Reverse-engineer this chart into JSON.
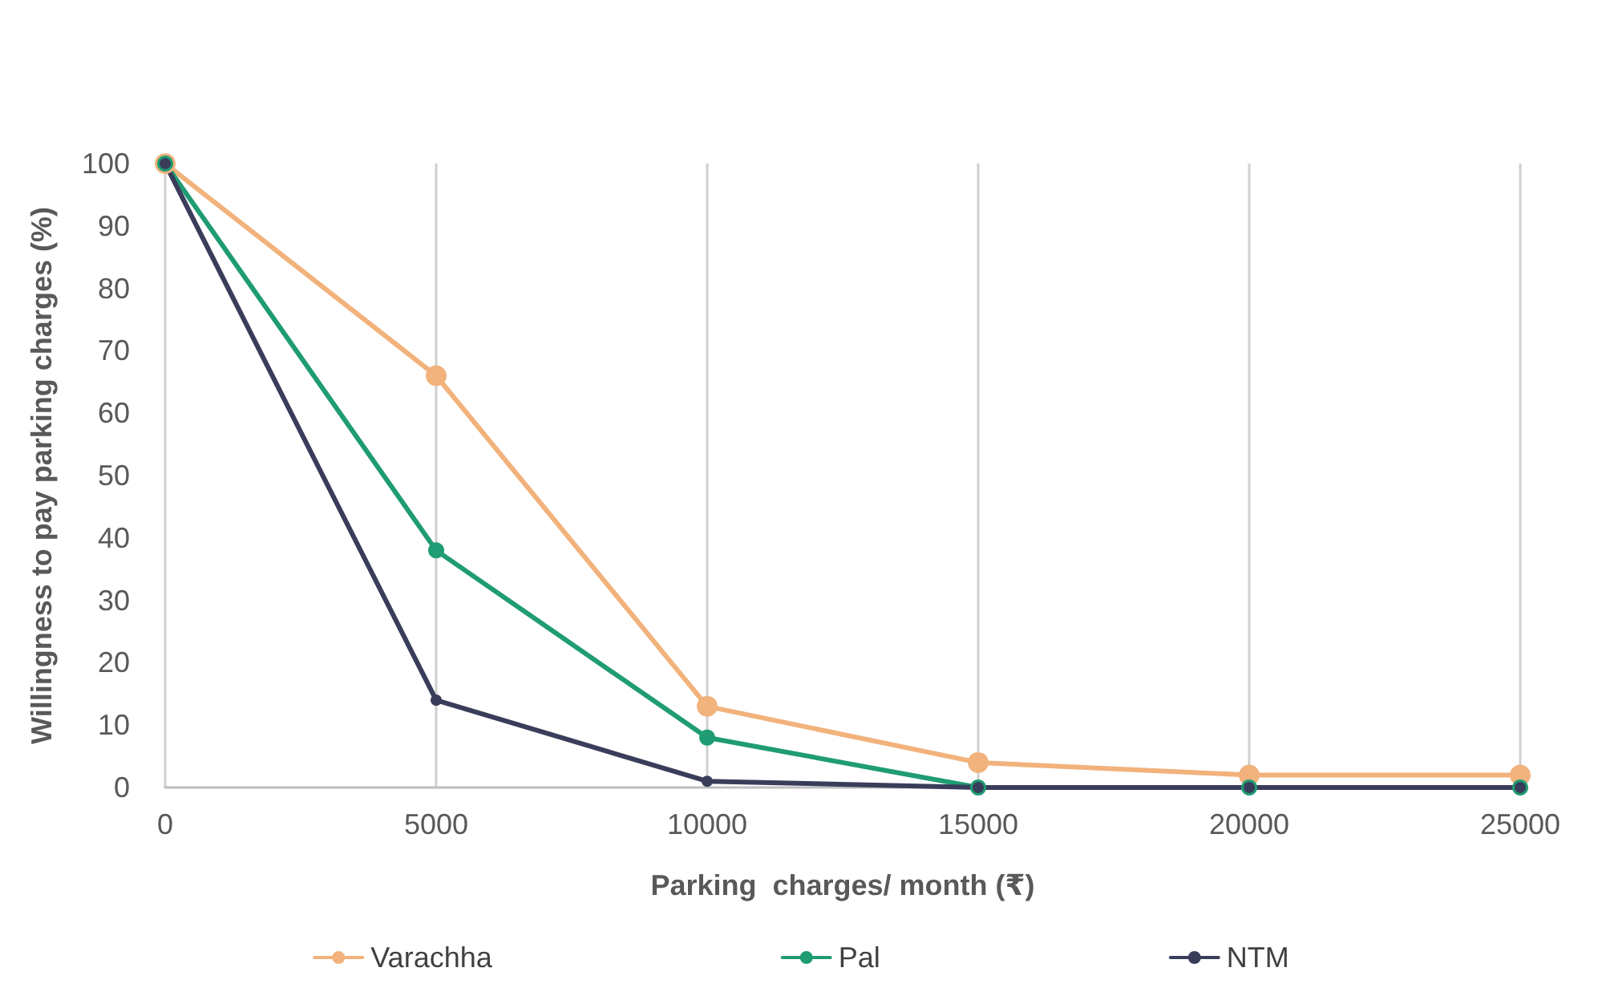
{
  "chart_data": {
    "type": "line",
    "xlabel": "Parking  charges/ month (₹)",
    "ylabel": "Willingness to pay parking charges (%)",
    "x": [
      0,
      5000,
      10000,
      15000,
      20000,
      25000
    ],
    "series": [
      {
        "name": "Varachha",
        "color": "#f2b27c",
        "values": [
          100,
          66,
          13,
          4,
          2,
          2
        ]
      },
      {
        "name": "Pal",
        "color": "#1f9c74",
        "values": [
          100,
          38,
          8,
          0,
          0,
          0
        ]
      },
      {
        "name": "NTM",
        "color": "#3a3d5a",
        "values": [
          100,
          14,
          1,
          0,
          0,
          0
        ]
      }
    ],
    "xlim": [
      0,
      25000
    ],
    "xticks": [
      0,
      5000,
      10000,
      15000,
      20000,
      25000
    ],
    "ylim": [
      0,
      100
    ],
    "yticks": [
      0,
      10,
      20,
      30,
      40,
      50,
      60,
      70,
      80,
      90,
      100
    ],
    "grid": "x",
    "legend": "bottom",
    "marker": "circle",
    "line_style": "solid"
  }
}
